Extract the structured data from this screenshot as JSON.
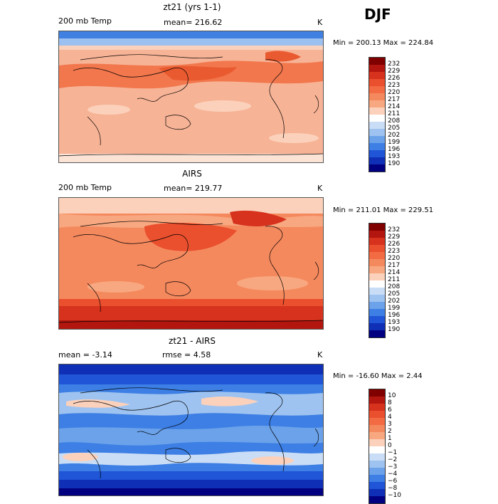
{
  "season": "DJF",
  "panels": [
    {
      "title": "zt21 (yrs 1-1)",
      "left_label": "200 mb Temp",
      "center_label": "mean= 216.62",
      "units": "K",
      "minmax": "Min = 200.13 Max = 224.84",
      "colorbar": {
        "labels": [
          "232",
          "229",
          "226",
          "223",
          "220",
          "217",
          "214",
          "211",
          "208",
          "205",
          "202",
          "199",
          "196",
          "193",
          "190"
        ],
        "colors": [
          "#800000",
          "#b3160f",
          "#d6321d",
          "#ea4f2e",
          "#f26b43",
          "#f5895e",
          "#f8a880",
          "#fbd1bb",
          "#ffffff",
          "#c9ddf6",
          "#9fc3f0",
          "#6ba2ea",
          "#3d7fe4",
          "#1f55d6",
          "#0f2fb7",
          "#000080"
        ]
      }
    },
    {
      "title": "AIRS",
      "left_label": "200 mb Temp",
      "center_label": "mean= 219.77",
      "units": "K",
      "minmax": "Min = 211.01 Max = 229.51",
      "colorbar": {
        "labels": [
          "232",
          "229",
          "226",
          "223",
          "220",
          "217",
          "214",
          "211",
          "208",
          "205",
          "202",
          "199",
          "196",
          "193",
          "190"
        ],
        "colors": [
          "#800000",
          "#b3160f",
          "#d6321d",
          "#ea4f2e",
          "#f26b43",
          "#f5895e",
          "#f8a880",
          "#fbd1bb",
          "#ffffff",
          "#c9ddf6",
          "#9fc3f0",
          "#6ba2ea",
          "#3d7fe4",
          "#1f55d6",
          "#0f2fb7",
          "#000080"
        ]
      }
    },
    {
      "title": "zt21 - AIRS",
      "left_label": "mean =   -3.14",
      "center_label": "rmse =   4.58",
      "units": "K",
      "minmax": "Min = -16.60 Max =   2.44",
      "colorbar": {
        "labels": [
          "10",
          "8",
          "6",
          "4",
          "3",
          "2",
          "1",
          "0",
          "−1",
          "−2",
          "−3",
          "−4",
          "−6",
          "−8",
          "−10"
        ],
        "colors": [
          "#800000",
          "#b3160f",
          "#d6321d",
          "#ea4f2e",
          "#f26b43",
          "#f5895e",
          "#f8a880",
          "#fbd1bb",
          "#ffffff",
          "#c9ddf6",
          "#9fc3f0",
          "#6ba2ea",
          "#3d7fe4",
          "#1f55d6",
          "#0f2fb7",
          "#000080"
        ]
      }
    }
  ]
}
